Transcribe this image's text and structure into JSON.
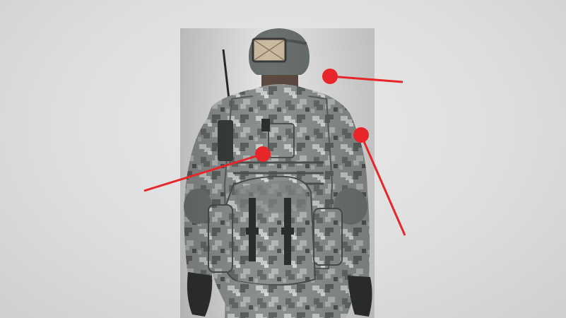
{
  "scene": {
    "subject": "soldier-back-view",
    "background_color": "#e3e3e3",
    "camo_base": "#8a8f8d",
    "marker_color": "#e8262a"
  },
  "markers": [
    {
      "name": "callout-neck"
    },
    {
      "name": "callout-back"
    },
    {
      "name": "callout-shoulder"
    }
  ]
}
